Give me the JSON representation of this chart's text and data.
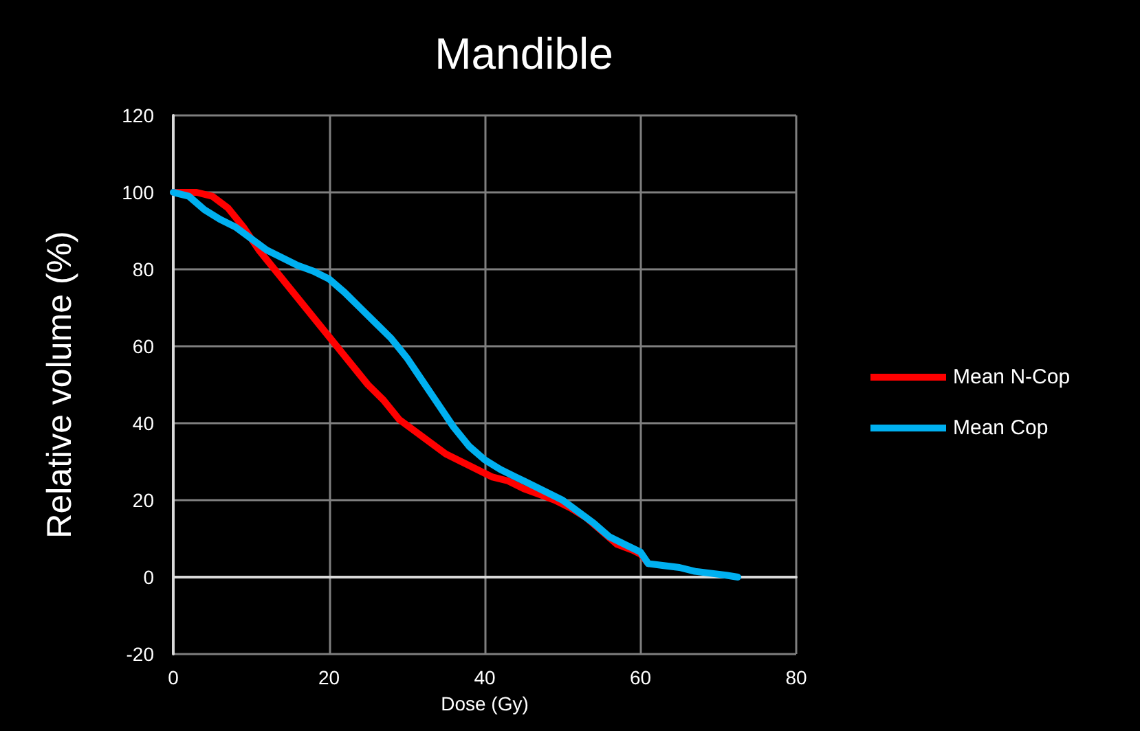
{
  "chart_data": {
    "type": "line",
    "title": "Mandible",
    "xlabel": "Dose (Gy)",
    "ylabel": "Relative volume (%)",
    "xlim": [
      0,
      80
    ],
    "xticks": [
      0,
      20,
      40,
      60,
      80
    ],
    "ylim": [
      -20,
      120
    ],
    "yticks": [
      -20,
      0,
      20,
      40,
      60,
      80,
      100,
      120
    ],
    "grid": true,
    "legend": "right",
    "marker": "none",
    "line_style": "solid",
    "series": [
      {
        "name": "Mean N-Cop",
        "color": "#ff0000",
        "x": [
          0,
          3,
          5,
          7,
          9,
          11,
          13,
          15,
          17,
          19,
          21,
          23,
          25,
          27,
          29,
          31,
          33,
          35,
          37,
          39,
          41,
          43,
          45,
          47,
          49,
          51,
          53,
          55,
          57,
          59,
          60,
          61
        ],
        "values": [
          100,
          100,
          99,
          96,
          91,
          85,
          80,
          75,
          70,
          65,
          60,
          55,
          50,
          46,
          41,
          38,
          35,
          32,
          30,
          28,
          26,
          25,
          23,
          21.5,
          20,
          18,
          15.5,
          12,
          8.5,
          7,
          6,
          3.5
        ]
      },
      {
        "name": "Mean Cop",
        "color": "#00b0f0",
        "x": [
          0,
          2,
          4,
          6,
          8,
          10,
          12,
          14,
          16,
          18,
          20,
          22,
          24,
          26,
          28,
          30,
          32,
          34,
          36,
          38,
          40,
          42,
          44,
          46,
          48,
          50,
          52,
          54,
          56,
          58,
          60,
          61,
          63,
          65,
          67,
          69,
          71,
          72.5
        ],
        "values": [
          100,
          99,
          95.5,
          93,
          91,
          88,
          85,
          83,
          81,
          79.5,
          77.5,
          74,
          70,
          66,
          62,
          57,
          51,
          45,
          39,
          34,
          30.5,
          28,
          26,
          24,
          22,
          20,
          17,
          14,
          10.5,
          8.5,
          6.5,
          3.5,
          3,
          2.5,
          1.5,
          1,
          0.5,
          0
        ]
      }
    ]
  }
}
